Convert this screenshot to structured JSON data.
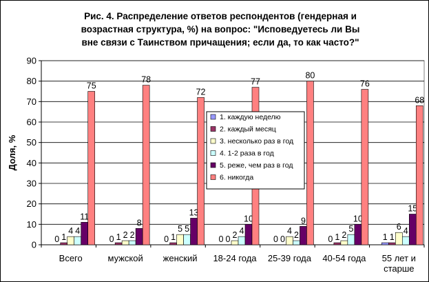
{
  "chart_data": {
    "type": "bar",
    "title_lines": [
      "Рис. 4. Распределение ответов респондентов (гендерная и",
      "возрастная структура, %) на вопрос: \"Исповедуетесь ли Вы",
      "вне связи с Таинством причащения; если да, то как часто?\""
    ],
    "ylabel": "Доля, %",
    "xlabel": "",
    "ylim": [
      0,
      90
    ],
    "yticks": [
      0,
      10,
      20,
      30,
      40,
      50,
      60,
      70,
      80,
      90
    ],
    "grid": true,
    "legend_position": "center-right",
    "categories": [
      [
        "Всего"
      ],
      [
        "мужской"
      ],
      [
        "женский"
      ],
      [
        "18-24 года"
      ],
      [
        "25-39 года"
      ],
      [
        "40-54 года"
      ],
      [
        "55 лет и",
        "старше"
      ]
    ],
    "series": [
      {
        "name": "1. каждую неделю",
        "color": "#9999FF",
        "values": [
          0,
          0,
          0,
          0,
          0,
          0,
          1
        ]
      },
      {
        "name": "2. каждый месяц",
        "color": "#993366",
        "values": [
          1,
          1,
          1,
          0,
          0,
          1,
          1
        ]
      },
      {
        "name": "3. несколько раз в год",
        "color": "#FFFFCC",
        "values": [
          4,
          2,
          5,
          2,
          4,
          2,
          6
        ]
      },
      {
        "name": "4. 1-2 раза в год",
        "color": "#CCFFFF",
        "values": [
          4,
          2,
          5,
          4,
          2,
          5,
          4
        ]
      },
      {
        "name": "5. реже, чем раз в год",
        "color": "#660066",
        "values": [
          11,
          8,
          13,
          10,
          9,
          10,
          15
        ]
      },
      {
        "name": "6. никогда",
        "color": "#FF8080",
        "values": [
          75,
          78,
          72,
          77,
          80,
          76,
          68
        ]
      }
    ]
  }
}
